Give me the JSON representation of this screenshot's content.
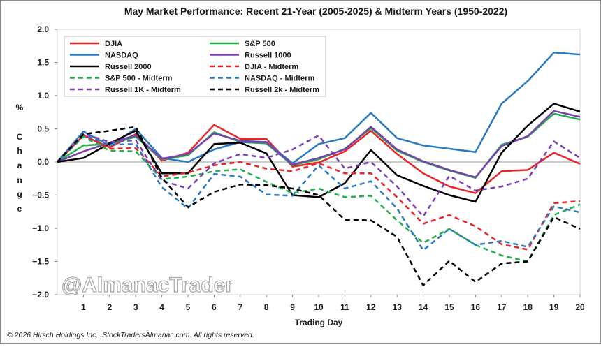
{
  "chart_data": {
    "type": "line",
    "title": "May Market Performance: Recent 21-Year (2005-2025) & Midterm Years (1950-2022)",
    "xlabel": "Trading Day",
    "ylabel_letters": [
      "%",
      "C",
      "h",
      "a",
      "n",
      "g",
      "e"
    ],
    "xlim": [
      0,
      20
    ],
    "ylim": [
      -2.0,
      2.0
    ],
    "x_ticks": [
      1,
      2,
      3,
      4,
      5,
      6,
      7,
      8,
      9,
      10,
      11,
      12,
      13,
      14,
      15,
      16,
      17,
      18,
      19,
      20
    ],
    "y_ticks": [
      2.0,
      1.5,
      1.0,
      0.5,
      0.0,
      -0.5,
      -1.0,
      -1.5,
      -2.0
    ],
    "y_tick_labels": [
      "2.0",
      "1.5",
      "1.0",
      "0.5",
      "0.0",
      "−0.5",
      "−1.0",
      "−1.5",
      "−2.0"
    ],
    "grid": false,
    "legend_position": "top-left",
    "x": [
      0,
      1,
      2,
      3,
      4,
      5,
      6,
      7,
      8,
      9,
      10,
      11,
      12,
      13,
      14,
      15,
      16,
      17,
      18,
      19,
      20
    ],
    "series": [
      {
        "name": "DJIA",
        "color": "#e8262a",
        "dashed": false,
        "values": [
          0.0,
          0.4,
          0.22,
          0.42,
          0.02,
          0.14,
          0.56,
          0.35,
          0.35,
          -0.07,
          -0.01,
          0.16,
          0.47,
          0.12,
          -0.17,
          -0.37,
          -0.47,
          -0.14,
          -0.12,
          0.14,
          -0.03
        ]
      },
      {
        "name": "S&P 500",
        "color": "#22b04b",
        "dashed": false,
        "values": [
          0.0,
          0.25,
          0.27,
          0.38,
          0.04,
          0.1,
          0.45,
          0.3,
          0.28,
          -0.05,
          0.04,
          0.2,
          0.51,
          0.17,
          0.0,
          -0.13,
          -0.24,
          0.26,
          0.38,
          0.73,
          0.64
        ]
      },
      {
        "name": "NASDAQ",
        "color": "#2a7abf",
        "dashed": false,
        "values": [
          0.0,
          0.46,
          0.25,
          0.5,
          0.06,
          0.0,
          0.19,
          0.3,
          0.3,
          -0.02,
          0.27,
          0.36,
          0.74,
          0.36,
          0.25,
          0.2,
          0.15,
          0.88,
          1.22,
          1.65,
          1.62
        ]
      },
      {
        "name": "Russell 1000",
        "color": "#7a3fb0",
        "dashed": false,
        "values": [
          0.0,
          0.16,
          0.29,
          0.4,
          0.05,
          0.12,
          0.43,
          0.32,
          0.3,
          -0.04,
          0.06,
          0.19,
          0.53,
          0.19,
          0.01,
          -0.12,
          -0.23,
          0.24,
          0.39,
          0.77,
          0.68
        ]
      },
      {
        "name": "Russell 2000",
        "color": "#000000",
        "dashed": false,
        "values": [
          0.0,
          0.06,
          0.28,
          0.47,
          -0.17,
          -0.17,
          0.27,
          0.29,
          0.13,
          -0.5,
          -0.53,
          -0.32,
          0.18,
          -0.2,
          -0.36,
          -0.5,
          -0.6,
          0.14,
          0.55,
          0.88,
          0.76
        ]
      },
      {
        "name": "DJIA - Midterm",
        "color": "#e8262a",
        "dashed": true,
        "values": [
          0.0,
          0.41,
          0.2,
          0.21,
          -0.22,
          -0.16,
          -0.05,
          0.0,
          -0.1,
          -0.14,
          -0.02,
          -0.17,
          -0.17,
          -0.53,
          -0.93,
          -0.8,
          -0.97,
          -1.24,
          -1.32,
          -0.62,
          -0.59
        ]
      },
      {
        "name": "S&P 500 - Midterm",
        "color": "#22b04b",
        "dashed": true,
        "values": [
          0.0,
          0.38,
          0.17,
          0.16,
          -0.26,
          -0.22,
          -0.14,
          -0.11,
          -0.3,
          -0.47,
          -0.4,
          -0.53,
          -0.51,
          -0.88,
          -1.22,
          -1.01,
          -1.25,
          -1.41,
          -1.5,
          -0.8,
          -0.64
        ]
      },
      {
        "name": "NASDAQ - Midterm",
        "color": "#2a7abf",
        "dashed": true,
        "values": [
          0.0,
          0.41,
          0.26,
          0.27,
          -0.38,
          -0.7,
          -0.18,
          -0.22,
          -0.49,
          -0.51,
          -0.05,
          -0.4,
          -0.29,
          -0.7,
          -1.33,
          -1.01,
          -1.25,
          -1.19,
          -1.28,
          -0.67,
          -0.76
        ]
      },
      {
        "name": "Russell 1K - Midterm",
        "color": "#7a3fb0",
        "dashed": true,
        "values": [
          0.0,
          0.43,
          0.3,
          0.33,
          -0.28,
          -0.4,
          -0.02,
          0.12,
          0.06,
          0.19,
          0.4,
          -0.1,
          0.0,
          -0.37,
          -0.82,
          -0.21,
          -0.43,
          -0.37,
          -0.25,
          0.31,
          0.06
        ]
      },
      {
        "name": "Russell 2k - Midterm",
        "color": "#000000",
        "dashed": true,
        "values": [
          0.0,
          0.42,
          0.47,
          0.53,
          -0.24,
          -0.68,
          -0.45,
          -0.34,
          -0.35,
          -0.4,
          -0.5,
          -0.87,
          -0.88,
          -1.13,
          -1.86,
          -1.49,
          -1.81,
          -1.53,
          -1.5,
          -0.83,
          -1.01
        ]
      }
    ],
    "watermark": "@AlmanacTrader",
    "footer": "© 2026 Hirsch Holdings Inc., StockTradersAlmanac.com. All rights reserved."
  }
}
